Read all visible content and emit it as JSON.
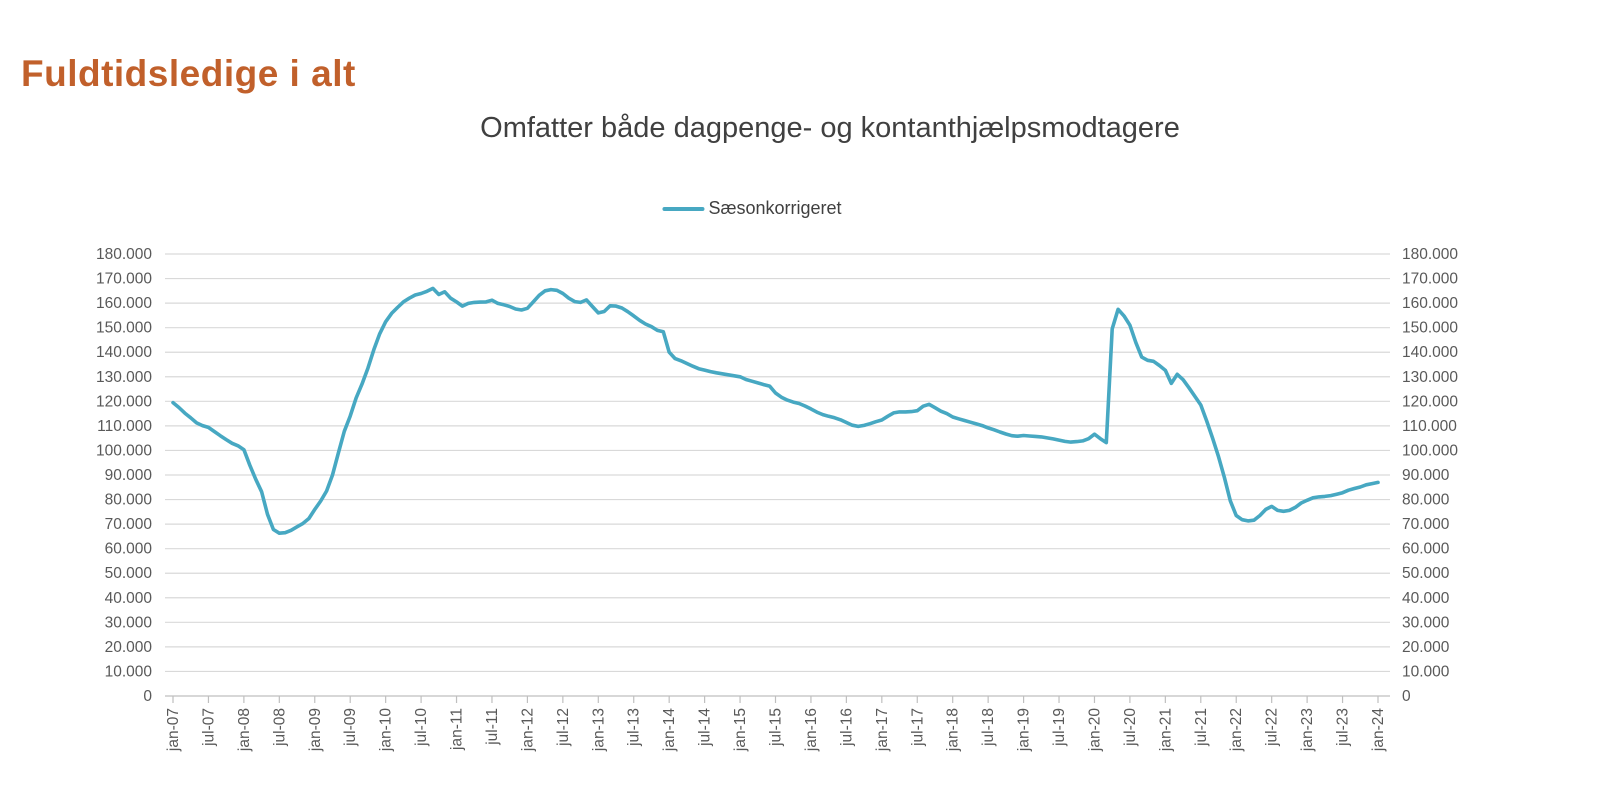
{
  "page": {
    "title": "Fuldtidsledige i alt"
  },
  "palette": {
    "title_orange": "#C1602B",
    "text_dark_gray": "#404040",
    "axis_label_gray": "#595959",
    "gridline_gray": "#D9D9D9",
    "axis_line_gray": "#BFBFBF",
    "series_teal": "#47A8C2",
    "background": "#FFFFFF"
  },
  "chart_data": {
    "type": "line",
    "title": "Omfatter både dagpenge- og kontanthjælpsmodtagere",
    "series_name": "Sæsonkorrigeret",
    "legend_position": "top-center",
    "grid": "horizontal",
    "ylim": [
      0,
      180000
    ],
    "y_tick_step": 10000,
    "y_axis_sides": "both",
    "y_tick_labels": [
      "0",
      "10.000",
      "20.000",
      "30.000",
      "40.000",
      "50.000",
      "60.000",
      "70.000",
      "80.000",
      "90.000",
      "100.000",
      "110.000",
      "120.000",
      "130.000",
      "140.000",
      "150.000",
      "160.000",
      "170.000",
      "180.000"
    ],
    "x_tick_labels": [
      "jan-07",
      "jul-07",
      "jan-08",
      "jul-08",
      "jan-09",
      "jul-09",
      "jan-10",
      "jul-10",
      "jan-11",
      "jul-11",
      "jan-12",
      "jul-12",
      "jan-13",
      "jul-13",
      "jan-14",
      "jul-14",
      "jan-15",
      "jul-15",
      "jan-16",
      "jul-16",
      "jan-17",
      "jul-17",
      "jan-18",
      "jul-18",
      "jan-19",
      "jul-19",
      "jan-20",
      "jul-20",
      "jan-21",
      "jul-21",
      "jan-22",
      "jul-22",
      "jan-23",
      "jul-23",
      "jan-24"
    ],
    "x_label_rotation_deg": -90,
    "x_months_per_tick": 6,
    "series": [
      {
        "name": "Sæsonkorrigeret",
        "color": "#47A8C2",
        "first_month": "jan-07",
        "last_month": "jan-24",
        "values": [
          119500,
          117500,
          115200,
          113300,
          111200,
          110100,
          109400,
          107700,
          106000,
          104400,
          102900,
          101900,
          100300,
          94000,
          88300,
          83200,
          74000,
          67800,
          66300,
          66500,
          67500,
          68900,
          70300,
          72300,
          76000,
          79400,
          83500,
          90000,
          99000,
          107800,
          114000,
          121300,
          127000,
          133500,
          141000,
          147500,
          152400,
          155800,
          158200,
          160500,
          162000,
          163300,
          163900,
          164800,
          166000,
          163500,
          164600,
          162000,
          160500,
          158800,
          159900,
          160300,
          160400,
          160500,
          161200,
          159900,
          159300,
          158600,
          157600,
          157200,
          157900,
          160500,
          163200,
          165000,
          165500,
          165200,
          163900,
          162000,
          160600,
          160300,
          161300,
          158600,
          156000,
          156600,
          158900,
          158800,
          158000,
          156500,
          154800,
          153000,
          151500,
          150400,
          148900,
          148300,
          140000,
          137400,
          136500,
          135400,
          134300,
          133300,
          132700,
          132100,
          131600,
          131200,
          130800,
          130400,
          130000,
          128900,
          128200,
          127500,
          126800,
          126200,
          123400,
          121700,
          120500,
          119700,
          119100,
          118100,
          116900,
          115600,
          114600,
          113900,
          113300,
          112500,
          111400,
          110300,
          109800,
          110200,
          110900,
          111700,
          112400,
          113900,
          115300,
          115700,
          115700,
          115800,
          116200,
          118000,
          118800,
          117400,
          116000,
          115000,
          113600,
          112900,
          112200,
          111500,
          110800,
          110100,
          109200,
          108400,
          107500,
          106700,
          106000,
          105800,
          106100,
          105900,
          105700,
          105500,
          105100,
          104700,
          104200,
          103700,
          103400,
          103600,
          103900,
          104800,
          106600,
          104800,
          103200,
          149500,
          157500,
          154800,
          151000,
          144000,
          138000,
          136700,
          136300,
          134600,
          132600,
          127300,
          131000,
          128800,
          125500,
          122000,
          118500,
          112000,
          105000,
          97500,
          89000,
          79500,
          73500,
          71800,
          71300,
          71600,
          73500,
          76000,
          77200,
          75600,
          75200,
          75600,
          76800,
          78600,
          79700,
          80700,
          81100,
          81300,
          81600,
          82200,
          82800,
          83800,
          84500,
          85100,
          86000,
          86500,
          87000
        ]
      }
    ]
  }
}
